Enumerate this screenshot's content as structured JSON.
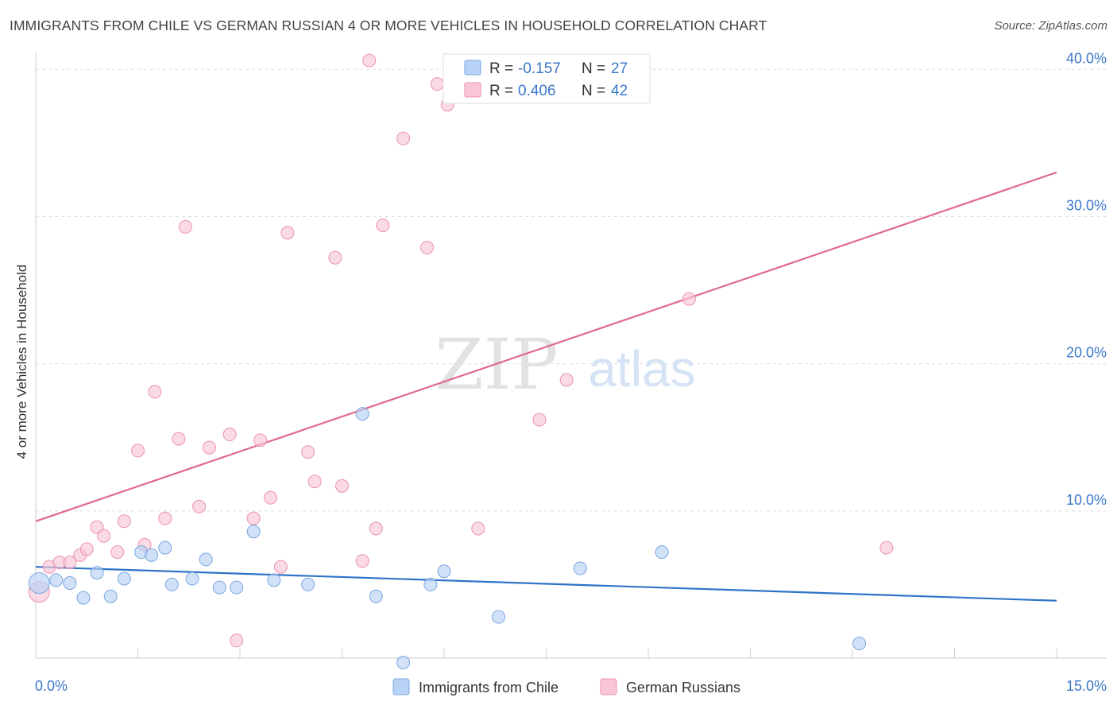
{
  "header": {
    "title": "IMMIGRANTS FROM CHILE VS GERMAN RUSSIAN 4 OR MORE VEHICLES IN HOUSEHOLD CORRELATION CHART",
    "source": "Source: ZipAtlas.com"
  },
  "watermark": {
    "zip": "ZIP",
    "atlas": "atlas"
  },
  "legend_box": {
    "rows": [
      {
        "r_label": "R =",
        "r_value": "-0.157",
        "n_label": "N =",
        "n_value": "27"
      },
      {
        "r_label": "R =",
        "r_value": "0.406",
        "n_label": "N =",
        "n_value": "42"
      }
    ]
  },
  "colors": {
    "chile_fill": "#b8d3f5",
    "chile_stroke": "#7aa6e0",
    "chile_line": "#2f74c8",
    "gr_fill": "#f8c6d6",
    "gr_stroke": "#ec92b1",
    "gr_line": "#e06890",
    "axis_text": "#3b78c9"
  },
  "chart_data": {
    "type": "scatter",
    "title": "IMMIGRANTS FROM CHILE VS GERMAN RUSSIAN 4 OR MORE VEHICLES IN HOUSEHOLD CORRELATION CHART",
    "xlabel": "",
    "ylabel": "4 or more Vehicles in Household",
    "xlim": [
      0,
      15
    ],
    "ylim": [
      0,
      40.5
    ],
    "x_tick_labels": [
      "0.0%",
      "15.0%"
    ],
    "y_ticks": [
      10,
      20,
      30,
      40
    ],
    "y_tick_labels": [
      "10.0%",
      "20.0%",
      "30.0%",
      "40.0%"
    ],
    "legend": [
      "Immigrants from Chile",
      "German Russians"
    ],
    "series": [
      {
        "name": "Immigrants from Chile",
        "R": -0.157,
        "N": 27,
        "trend": {
          "x0": 0,
          "y0": 6.2,
          "x1": 15,
          "y1": 3.9
        },
        "points": [
          [
            0.05,
            5.1
          ],
          [
            0.3,
            5.3
          ],
          [
            0.5,
            5.1
          ],
          [
            0.7,
            4.1
          ],
          [
            0.9,
            5.8
          ],
          [
            1.1,
            4.2
          ],
          [
            1.3,
            5.4
          ],
          [
            1.55,
            7.2
          ],
          [
            1.7,
            7.0
          ],
          [
            1.9,
            7.5
          ],
          [
            2.0,
            5.0
          ],
          [
            2.3,
            5.4
          ],
          [
            2.5,
            6.7
          ],
          [
            2.7,
            4.8
          ],
          [
            2.95,
            4.8
          ],
          [
            3.2,
            8.6
          ],
          [
            3.5,
            5.3
          ],
          [
            4.0,
            5.0
          ],
          [
            4.8,
            16.6
          ],
          [
            5.0,
            4.2
          ],
          [
            5.4,
            -0.3
          ],
          [
            5.8,
            5.0
          ],
          [
            6.0,
            5.9
          ],
          [
            6.8,
            2.8
          ],
          [
            8.0,
            6.1
          ],
          [
            9.2,
            7.2
          ],
          [
            12.1,
            1.0
          ]
        ]
      },
      {
        "name": "German Russians",
        "R": 0.406,
        "N": 42,
        "trend": {
          "x0": 0,
          "y0": 9.3,
          "x1": 15,
          "y1": 33.0
        },
        "points": [
          [
            0.05,
            4.5
          ],
          [
            0.2,
            6.2
          ],
          [
            0.35,
            6.5
          ],
          [
            0.5,
            6.5
          ],
          [
            0.65,
            7.0
          ],
          [
            0.75,
            7.4
          ],
          [
            0.9,
            8.9
          ],
          [
            1.0,
            8.3
          ],
          [
            1.2,
            7.2
          ],
          [
            1.3,
            9.3
          ],
          [
            1.5,
            14.1
          ],
          [
            1.6,
            7.7
          ],
          [
            1.75,
            18.1
          ],
          [
            1.9,
            9.5
          ],
          [
            2.1,
            14.9
          ],
          [
            2.2,
            29.3
          ],
          [
            2.4,
            10.3
          ],
          [
            2.55,
            14.3
          ],
          [
            2.85,
            15.2
          ],
          [
            2.95,
            1.2
          ],
          [
            3.2,
            9.5
          ],
          [
            3.3,
            14.8
          ],
          [
            3.45,
            10.9
          ],
          [
            3.6,
            6.2
          ],
          [
            3.7,
            28.9
          ],
          [
            4.0,
            14.0
          ],
          [
            4.1,
            12.0
          ],
          [
            4.4,
            27.2
          ],
          [
            4.5,
            11.7
          ],
          [
            4.8,
            6.6
          ],
          [
            4.9,
            40.6
          ],
          [
            5.0,
            8.8
          ],
          [
            5.1,
            29.4
          ],
          [
            5.4,
            35.3
          ],
          [
            5.75,
            27.9
          ],
          [
            5.9,
            39.0
          ],
          [
            6.05,
            37.6
          ],
          [
            6.5,
            8.8
          ],
          [
            7.4,
            16.2
          ],
          [
            7.8,
            18.9
          ],
          [
            9.6,
            24.4
          ],
          [
            12.5,
            7.5
          ]
        ]
      }
    ]
  }
}
